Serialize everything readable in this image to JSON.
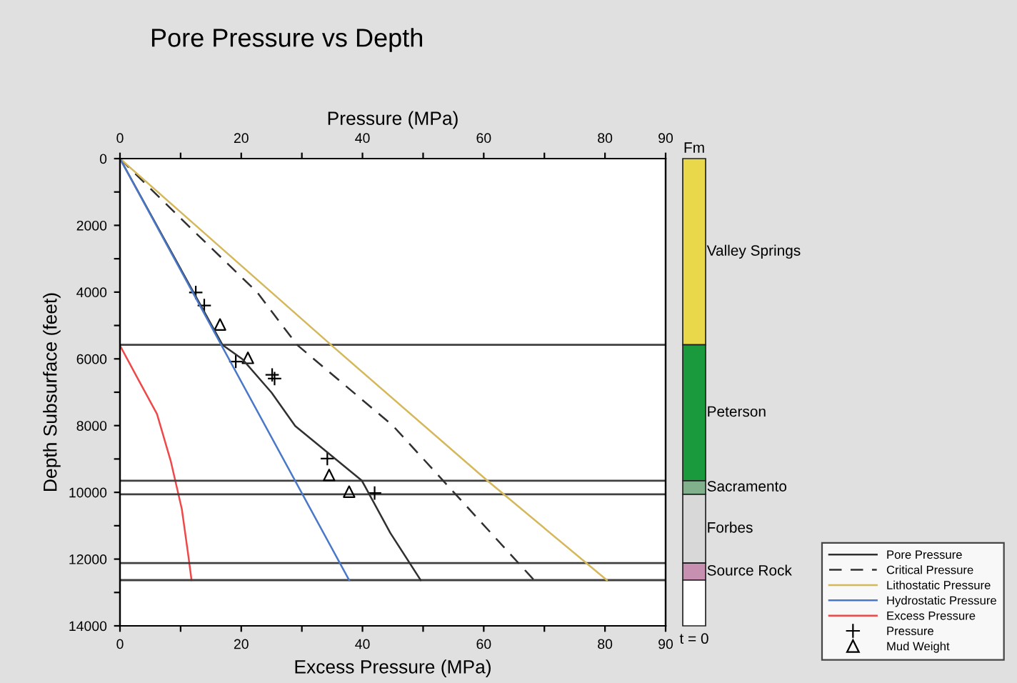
{
  "chart_data": [
    {
      "type": "line",
      "title": "Pore Pressure vs Depth",
      "xlabel": "Excess Pressure (MPa)",
      "x2label": "Pressure (MPa)",
      "ylabel": "Depth Subsurface (feet)",
      "xlim": [
        0,
        90
      ],
      "xticks": [
        0,
        {
          "value": 10,
          "label": null
        },
        20,
        {
          "value": 30,
          "label": null
        },
        40,
        {
          "value": 50,
          "label": null
        },
        60,
        {
          "value": 70,
          "label": null
        },
        80,
        90
      ],
      "x2lim": [
        0,
        90
      ],
      "x2ticks": [
        0,
        {
          "value": 10,
          "label": null
        },
        20,
        {
          "value": 30,
          "label": null
        },
        40,
        {
          "value": 50,
          "label": null
        },
        60,
        {
          "value": 70,
          "label": null
        },
        80,
        90
      ],
      "ylim": [
        14000,
        0
      ],
      "yticks": [
        0,
        {
          "value": 1000,
          "label": null
        },
        2000,
        {
          "value": 3000,
          "label": null
        },
        4000,
        {
          "value": 5000,
          "label": null
        },
        6000,
        {
          "value": 7000,
          "label": null
        },
        8000,
        {
          "value": 9000,
          "label": null
        },
        10000,
        {
          "value": 11000,
          "label": null
        },
        12000,
        {
          "value": 13000,
          "label": null
        },
        14000
      ],
      "legend": "bottom right",
      "series": [
        {
          "name": "Pore Pressure",
          "axis": "x2",
          "line_style": "solid",
          "color": "#303030",
          "x": [
            0,
            16.9,
            20.2,
            25.0,
            28.9,
            39.9,
            44.6,
            49.6
          ],
          "values": [
            0,
            5580,
            6010,
            7010,
            8010,
            9650,
            11220,
            12630
          ]
        },
        {
          "name": "Critical Pressure",
          "axis": "x2",
          "line_style": "dashed",
          "color": "#303030",
          "x": [
            0,
            11.2,
            22.6,
            29.2,
            45.0,
            68.3
          ],
          "values": [
            0,
            2000,
            4000,
            5580,
            8000,
            12630
          ]
        },
        {
          "name": "Lithostatic Pressure",
          "axis": "x2",
          "line_style": "solid",
          "color": "#d4b85a",
          "x": [
            0,
            34.8,
            60.6,
            80.3
          ],
          "values": [
            0,
            5580,
            9650,
            12630
          ]
        },
        {
          "name": "Hydrostatic Pressure",
          "axis": "x2",
          "line_style": "solid",
          "color": "#4a78c8",
          "x": [
            0,
            37.8
          ],
          "values": [
            0,
            12630
          ]
        },
        {
          "name": "Excess Pressure",
          "line_style": "solid",
          "color": "#f04848",
          "x": [
            0,
            2.9,
            6.1,
            8.4,
            10.2,
            11.3,
            11.8
          ],
          "values": [
            5600,
            6580,
            7650,
            9080,
            10500,
            11930,
            12630
          ]
        },
        {
          "name": "Pressure",
          "type": "scatter",
          "axis": "x2",
          "marker": "cross",
          "color": "#000000",
          "x": [
            12.5,
            13.9,
            19.1,
            25.1,
            25.5,
            34.2,
            42.0
          ],
          "values": [
            4010,
            4400,
            6080,
            6480,
            6590,
            8990,
            10020
          ]
        },
        {
          "name": "Mud Weight",
          "type": "scatter",
          "axis": "x2",
          "marker": "triangle",
          "color": "#000000",
          "x": [
            16.5,
            21.1,
            34.5,
            37.8
          ],
          "values": [
            4970,
            5970,
            9480,
            9980
          ]
        }
      ],
      "ref_lines": [
        {
          "axis": "y",
          "value": 5580,
          "color": "#404040"
        },
        {
          "axis": "y",
          "value": 9650,
          "color": "#404040"
        },
        {
          "axis": "y",
          "value": 10060,
          "color": "#404040"
        },
        {
          "axis": "y",
          "value": 12120,
          "color": "#404040"
        },
        {
          "axis": "y",
          "value": 12630,
          "color": "#404040"
        }
      ]
    },
    {
      "type": "bar",
      "stacked": true,
      "title": "Fm",
      "categories": [
        null
      ],
      "ylim": [
        14000,
        0
      ],
      "tick_labels": false,
      "series": [
        {
          "name": "Valley Springs",
          "color": "#e8d84a",
          "values": [
            5580
          ]
        },
        {
          "name": "Peterson",
          "color": "#1a9a3c",
          "values": [
            4070
          ]
        },
        {
          "name": "Sacramento",
          "color": "#80b08c",
          "values": [
            410
          ]
        },
        {
          "name": "Forbes",
          "color": "#d8d8d8",
          "values": [
            2060
          ]
        },
        {
          "name": "Source Rock",
          "color": "#c890b0",
          "values": [
            510
          ]
        },
        {
          "color": "#ffffff",
          "values": [
            1370
          ]
        }
      ],
      "annotations": [
        "t = 0"
      ]
    }
  ]
}
